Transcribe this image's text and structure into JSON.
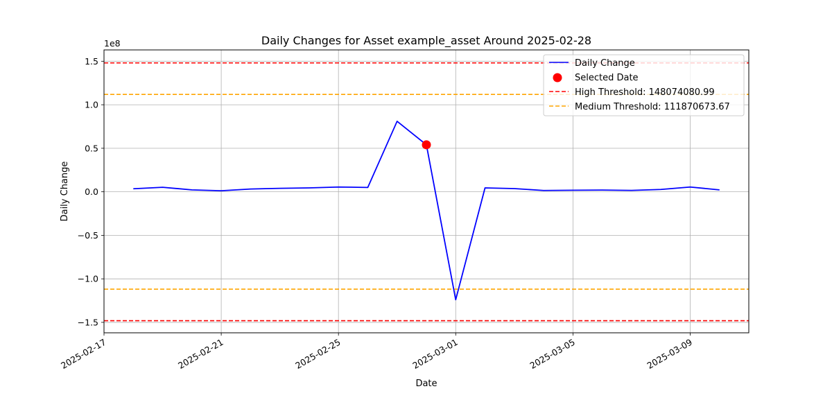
{
  "chart_data": {
    "type": "line",
    "title": "Daily Changes for Asset example_asset Around 2025-02-28",
    "xlabel": "Date",
    "ylabel": "Daily Change",
    "y_offset_text": "1e8",
    "y_scale": 100000000,
    "xlim": [
      "2025-02-17",
      "2025-03-11"
    ],
    "ylim": [
      -162000000,
      163000000
    ],
    "grid": true,
    "legend_position": "top-right",
    "x_ticks": [
      {
        "date": "2025-02-17",
        "label": "2025-02-17"
      },
      {
        "date": "2025-02-21",
        "label": "2025-02-21"
      },
      {
        "date": "2025-02-25",
        "label": "2025-02-25"
      },
      {
        "date": "2025-03-01",
        "label": "2025-03-01"
      },
      {
        "date": "2025-03-05",
        "label": "2025-03-05"
      },
      {
        "date": "2025-03-09",
        "label": "2025-03-09"
      }
    ],
    "y_ticks": [
      {
        "value": -150000000,
        "label": "−1.5"
      },
      {
        "value": -100000000,
        "label": "−1.0"
      },
      {
        "value": -50000000,
        "label": "−0.5"
      },
      {
        "value": 0,
        "label": "0.0"
      },
      {
        "value": 50000000,
        "label": "0.5"
      },
      {
        "value": 100000000,
        "label": "1.0"
      },
      {
        "value": 150000000,
        "label": "1.5"
      }
    ],
    "series": [
      {
        "name": "Daily Change",
        "color": "#0000ff",
        "x": [
          "2025-02-18",
          "2025-02-19",
          "2025-02-20",
          "2025-02-21",
          "2025-02-22",
          "2025-02-23",
          "2025-02-24",
          "2025-02-25",
          "2025-02-26",
          "2025-02-27",
          "2025-02-28",
          "2025-03-01",
          "2025-03-02",
          "2025-03-03",
          "2025-03-04",
          "2025-03-05",
          "2025-03-06",
          "2025-03-07",
          "2025-03-08",
          "2025-03-09",
          "2025-03-10"
        ],
        "y": [
          3500000,
          5200000,
          2200000,
          1200000,
          3200000,
          4000000,
          4500000,
          5500000,
          5000000,
          81000000,
          54000000,
          -124000000,
          4500000,
          3700000,
          1500000,
          1800000,
          2000000,
          1600000,
          2700000,
          5500000,
          2200000
        ]
      }
    ],
    "highlight": {
      "name": "Selected Date",
      "color": "#ff0000",
      "x": "2025-02-28",
      "y": 54000000
    },
    "thresholds": [
      {
        "name": "High Threshold: 148074080.99",
        "value": 148074080.99,
        "color": "#ff0000"
      },
      {
        "name": "Medium Threshold: 111870673.67",
        "value": 111870673.67,
        "color": "#ffa500"
      }
    ]
  }
}
